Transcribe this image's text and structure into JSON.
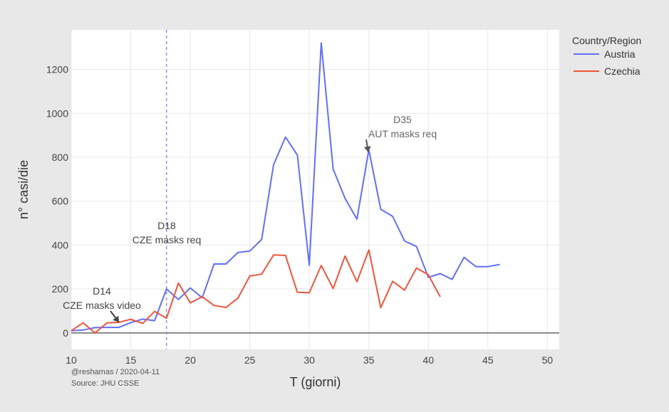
{
  "chart_data": {
    "type": "line",
    "xlabel": "T (giorni)",
    "ylabel": "n° casi/die",
    "xlim": [
      10,
      51
    ],
    "ylim": [
      -75,
      1380
    ],
    "xticks": [
      10,
      15,
      20,
      25,
      30,
      35,
      40,
      45,
      50
    ],
    "yticks": [
      0,
      200,
      400,
      600,
      800,
      1000,
      1200
    ],
    "grid": true,
    "legend": {
      "title": "Country/Region",
      "placement": "top-right"
    },
    "colors": {
      "Austria": "#636efa",
      "Czechia": "#ef553b",
      "zeroline": "#888888",
      "vline": "#8b8fe8"
    },
    "series": [
      {
        "name": "Austria",
        "x": [
          10,
          11,
          12,
          13,
          14,
          15,
          16,
          17,
          18,
          19,
          20,
          21,
          22,
          23,
          24,
          25,
          26,
          27,
          28,
          29,
          30,
          31,
          32,
          33,
          34,
          35,
          36,
          37,
          38,
          39,
          40,
          41,
          42,
          43,
          44,
          45,
          46
        ],
        "y": [
          10,
          13,
          24,
          25,
          25,
          47,
          63,
          56,
          200,
          152,
          205,
          160,
          314,
          314,
          366,
          373,
          426,
          766,
          892,
          810,
          308,
          1321,
          746,
          613,
          518,
          834,
          563,
          531,
          419,
          394,
          253,
          270,
          244,
          344,
          302,
          302,
          312
        ]
      },
      {
        "name": "Czechia",
        "x": [
          10,
          11,
          12,
          13,
          14,
          15,
          16,
          17,
          18,
          19,
          20,
          21,
          22,
          23,
          24,
          25,
          26,
          27,
          28,
          29,
          30,
          31,
          32,
          33,
          34,
          35,
          36,
          37,
          38,
          39,
          40,
          41
        ],
        "y": [
          10,
          46,
          0,
          46,
          48,
          62,
          43,
          98,
          67,
          227,
          137,
          165,
          125,
          116,
          158,
          259,
          268,
          355,
          353,
          185,
          183,
          307,
          202,
          350,
          233,
          378,
          115,
          235,
          195,
          295,
          265,
          164
        ]
      }
    ],
    "vline_x": 18,
    "annotations": [
      {
        "id": "d14",
        "lines": [
          "D14",
          "CZE masks video"
        ],
        "x": 14,
        "y": 48,
        "arrow": true
      },
      {
        "id": "d18",
        "lines": [
          "D18",
          "CZE masks req"
        ],
        "x": 18,
        "y": 400,
        "arrow": false
      },
      {
        "id": "d35",
        "lines": [
          "D35",
          "AUT masks req"
        ],
        "x": 35,
        "y": 834,
        "arrow": true
      }
    ]
  },
  "footnote": {
    "line1": "@reshamas / 2020-04-11",
    "line2": "Source: JHU CSSE"
  }
}
